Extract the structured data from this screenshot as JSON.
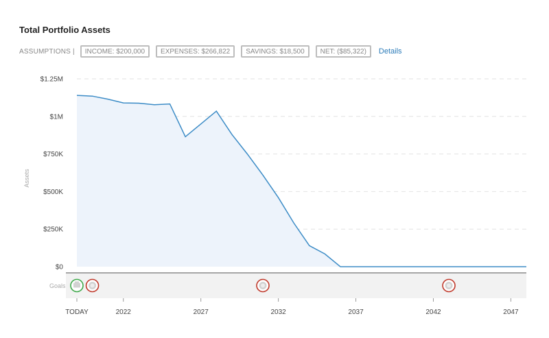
{
  "page": {
    "title": "Total Portfolio Assets"
  },
  "assumptions": {
    "label": "ASSUMPTIONS |",
    "pills": [
      {
        "text": "INCOME:  $200,000"
      },
      {
        "text": "EXPENSES:  $266,822"
      },
      {
        "text": "SAVINGS:  $18,500"
      },
      {
        "text": "NET:  ($85,322)"
      }
    ],
    "details_link": "Details"
  },
  "colors": {
    "line": "#3b8bc6",
    "area": "#edf3fb",
    "goal_green": "#3ea84a",
    "goal_red": "#c0392b",
    "goal_inner": "#d2d2d2",
    "grid": "#e2e2e2"
  },
  "chart_data": {
    "type": "area",
    "title": "",
    "ylabel": "Assets",
    "xlabel": "",
    "x_range": [
      2019.0,
      2048.0
    ],
    "ylim": [
      0,
      1250000
    ],
    "y_ticks": [
      {
        "value": 0,
        "label": "$0"
      },
      {
        "value": 250000,
        "label": "$250K"
      },
      {
        "value": 500000,
        "label": "$500K"
      },
      {
        "value": 750000,
        "label": "$750K"
      },
      {
        "value": 1000000,
        "label": "$1M"
      },
      {
        "value": 1250000,
        "label": "$1.25M"
      }
    ],
    "x_ticks": [
      {
        "value": 2019.0,
        "label": "TODAY"
      },
      {
        "value": 2022,
        "label": "2022"
      },
      {
        "value": 2027,
        "label": "2027"
      },
      {
        "value": 2032,
        "label": "2032"
      },
      {
        "value": 2037,
        "label": "2037"
      },
      {
        "value": 2042,
        "label": "2042"
      },
      {
        "value": 2047,
        "label": "2047"
      }
    ],
    "grid": true,
    "series": [
      {
        "x": [
          2019.0,
          2020,
          2021,
          2022,
          2023,
          2024,
          2025,
          2026,
          2027,
          2028,
          2029,
          2030,
          2031,
          2032,
          2033,
          2034,
          2035,
          2036,
          2048
        ],
        "values": [
          1140000,
          1135000,
          1115000,
          1090000,
          1088000,
          1078000,
          1083000,
          865000,
          950000,
          1035000,
          880000,
          750000,
          610000,
          460000,
          290000,
          140000,
          85000,
          0,
          0
        ]
      }
    ],
    "goals": {
      "label": "Goals",
      "markers": [
        {
          "x": 2019.0,
          "status": "green",
          "icon": "retirement-icon"
        },
        {
          "x": 2020.0,
          "status": "red",
          "icon": "goal-icon"
        },
        {
          "x": 2031.0,
          "status": "red",
          "icon": "goal-icon"
        },
        {
          "x": 2043.0,
          "status": "red",
          "icon": "goal-icon"
        }
      ]
    }
  }
}
